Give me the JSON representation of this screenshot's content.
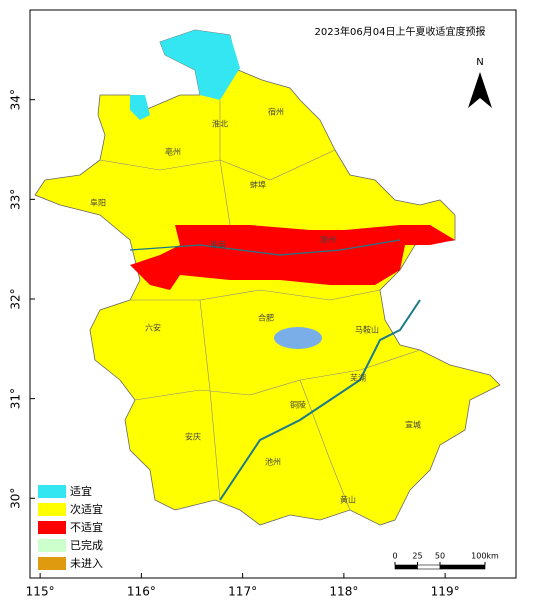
{
  "map": {
    "title": "2023年06月04日上午夏收适宜度预报",
    "north": "N",
    "lonlim": [
      114.9,
      119.7
    ],
    "latlim": [
      29.2,
      34.9
    ],
    "lon_ticks": [
      {
        "value": 115,
        "label": "115°"
      },
      {
        "value": 116,
        "label": "116°"
      },
      {
        "value": 117,
        "label": "117°"
      },
      {
        "value": 118,
        "label": "118°"
      },
      {
        "value": 119,
        "label": "119°"
      }
    ],
    "lat_ticks": [
      {
        "value": 30,
        "label": "30°"
      },
      {
        "value": 31,
        "label": "31°"
      },
      {
        "value": 32,
        "label": "32°"
      },
      {
        "value": 33,
        "label": "33°"
      },
      {
        "value": 34,
        "label": "34°"
      }
    ],
    "legend": [
      {
        "name": "适宜",
        "color": "#33e6f2"
      },
      {
        "name": "次适宜",
        "color": "#ffff00"
      },
      {
        "name": "不适宜",
        "color": "#ff0000"
      },
      {
        "name": "已完成",
        "color": "#ccffcc"
      },
      {
        "name": "未进入",
        "color": "#e09a10"
      }
    ],
    "scale_bar": [
      0,
      25,
      50,
      {
        "value": 100,
        "label": "100km"
      }
    ],
    "cities": [
      "淮北",
      "宿州",
      "亳州",
      "阜阳",
      "蚌埠",
      "淮南",
      "滁州",
      "合肥",
      "六安",
      "马鞍山",
      "芜湖",
      "宣城",
      "铜陵",
      "池州",
      "安庆",
      "黄山"
    ]
  }
}
